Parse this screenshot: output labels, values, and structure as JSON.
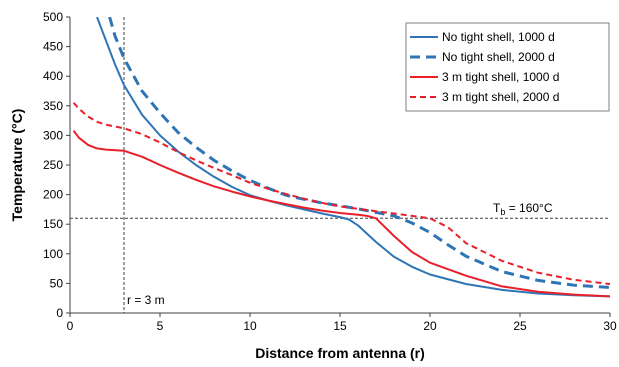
{
  "chart_data": {
    "type": "line",
    "title": "",
    "xlabel": "Distance from antenna (r)",
    "ylabel": "Temperature (°C)",
    "xlim": [
      0,
      30
    ],
    "ylim": [
      0,
      500
    ],
    "xticks": [
      0,
      5,
      10,
      15,
      20,
      25,
      30
    ],
    "yticks": [
      0,
      50,
      100,
      150,
      200,
      250,
      300,
      350,
      400,
      450,
      500
    ],
    "grid": false,
    "legend_position": "top-right",
    "series": [
      {
        "name": "No tight shell, 1000 d",
        "color": "#2E75B6",
        "dash": "solid",
        "x": [
          1.5,
          2,
          2.5,
          3,
          4,
          5,
          6,
          7,
          8,
          9,
          10,
          11,
          12,
          13,
          14,
          15,
          15.5,
          16,
          17,
          18,
          19,
          20,
          22,
          24,
          26,
          28,
          30
        ],
        "y": [
          500,
          460,
          420,
          385,
          335,
          300,
          273,
          250,
          230,
          213,
          199,
          190,
          182,
          175,
          168,
          162,
          158,
          148,
          120,
          95,
          78,
          65,
          49,
          39,
          33,
          30,
          28
        ]
      },
      {
        "name": "No tight shell, 2000 d",
        "color": "#2E75B6",
        "dash": "dashed",
        "x": [
          2.2,
          2.5,
          3,
          4,
          5,
          6,
          7,
          8,
          9,
          10,
          11,
          12,
          13,
          14,
          15,
          16,
          17,
          18,
          19,
          20,
          21,
          22,
          24,
          26,
          28,
          30
        ],
        "y": [
          500,
          468,
          430,
          375,
          338,
          305,
          280,
          258,
          240,
          224,
          211,
          199,
          192,
          186,
          181,
          176,
          170,
          164,
          152,
          136,
          115,
          96,
          70,
          55,
          47,
          43
        ]
      },
      {
        "name": "3 m tight shell, 1000 d",
        "color": "#E8202A",
        "dash": "solid",
        "x": [
          0.2,
          0.5,
          1,
          1.5,
          2,
          3,
          4,
          5,
          6,
          7,
          8,
          9,
          10,
          11,
          12,
          13,
          14,
          15,
          16,
          16.5,
          17,
          18,
          19,
          20,
          22,
          24,
          26,
          28,
          30
        ],
        "y": [
          308,
          296,
          284,
          278,
          276,
          274,
          264,
          250,
          237,
          225,
          214,
          205,
          197,
          190,
          184,
          178,
          173,
          169,
          166,
          164,
          160,
          130,
          103,
          85,
          63,
          45,
          36,
          31,
          28
        ]
      },
      {
        "name": "3 m tight shell, 2000 d",
        "color": "#E8202A",
        "dash": "dashed",
        "x": [
          0.2,
          0.5,
          1,
          1.5,
          2,
          3,
          4,
          5,
          6,
          7,
          8,
          9,
          10,
          11,
          12,
          13,
          14,
          15,
          16,
          17,
          18,
          19,
          20,
          21,
          22,
          24,
          26,
          28,
          30
        ],
        "y": [
          355,
          345,
          332,
          323,
          318,
          312,
          302,
          288,
          272,
          258,
          245,
          233,
          220,
          210,
          201,
          193,
          186,
          180,
          176,
          172,
          168,
          164,
          160,
          145,
          118,
          88,
          68,
          56,
          49
        ]
      }
    ],
    "reference_lines": [
      {
        "orientation": "horizontal",
        "value": 160,
        "label": "T_b = 160°C",
        "label_main": "T",
        "label_sub": "b",
        "label_rest": " = 160°C"
      },
      {
        "orientation": "vertical",
        "value": 3,
        "label": "r = 3 m"
      }
    ]
  }
}
